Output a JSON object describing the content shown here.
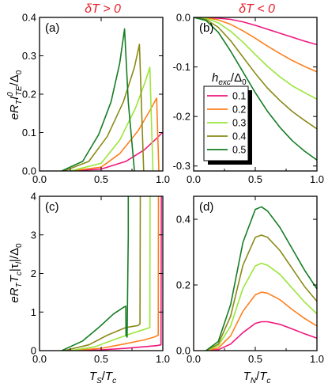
{
  "chart_data": [
    {
      "type": "line",
      "panel_label": "(a)",
      "title": "δT > 0",
      "ylabel": "eR_T I^0_TE/Δ_0",
      "xlabel": "",
      "xlim": [
        0,
        1
      ],
      "ylim": [
        0,
        0.4
      ],
      "x_ticks": [
        "0.0",
        "0.5",
        "1.0"
      ],
      "y_ticks": [
        "0.0",
        "0.1",
        "0.2",
        "0.3",
        "0.4"
      ],
      "series": [
        {
          "name": "0.1",
          "color": "#f0167e",
          "x": [
            0.25,
            0.5,
            0.7,
            0.85,
            0.95,
            0.99,
            1.0
          ],
          "y": [
            0,
            0.005,
            0.025,
            0.055,
            0.085,
            0.098,
            0.1
          ]
        },
        {
          "name": "0.2",
          "color": "#ff7f1e",
          "x": [
            0.25,
            0.5,
            0.65,
            0.8,
            0.9,
            0.95,
            0.968
          ],
          "y": [
            0,
            0.01,
            0.045,
            0.105,
            0.16,
            0.19,
            0.0
          ]
        },
        {
          "name": "0.3",
          "color": "#9ae63a",
          "x": [
            0.25,
            0.5,
            0.65,
            0.78,
            0.86,
            0.895,
            0.92
          ],
          "y": [
            0,
            0.02,
            0.08,
            0.165,
            0.235,
            0.27,
            0.0
          ]
        },
        {
          "name": "0.4",
          "color": "#8a8a18",
          "x": [
            0.2,
            0.4,
            0.55,
            0.68,
            0.77,
            0.81,
            0.845
          ],
          "y": [
            0,
            0.025,
            0.09,
            0.18,
            0.27,
            0.33,
            0.0
          ]
        },
        {
          "name": "0.5",
          "color": "#157d24",
          "x": [
            0.18,
            0.35,
            0.48,
            0.58,
            0.65,
            0.69,
            0.72,
            0.77
          ],
          "y": [
            0,
            0.025,
            0.095,
            0.18,
            0.28,
            0.37,
            0.18,
            0.0
          ]
        }
      ]
    },
    {
      "type": "line",
      "panel_label": "(b)",
      "title": "δT < 0",
      "xlabel": "",
      "ylabel": "",
      "xlim": [
        0,
        1
      ],
      "ylim": [
        -0.31,
        0.0
      ],
      "x_ticks": [
        "0.0",
        "0.5",
        "1.0"
      ],
      "y_ticks": [
        "0.0",
        "-0.1",
        "-0.2",
        "-0.3"
      ],
      "legend": {
        "title": "h_exc/Δ_0",
        "placement": "center-left"
      },
      "series": [
        {
          "name": "0.1",
          "color": "#f0167e",
          "x": [
            0,
            0.1,
            0.2,
            0.3,
            0.4,
            0.5,
            0.6,
            0.7,
            0.8,
            0.9,
            1.0
          ],
          "y": [
            0,
            -0.0003,
            -0.0015,
            -0.004,
            -0.009,
            -0.016,
            -0.024,
            -0.032,
            -0.04,
            -0.048,
            -0.055
          ]
        },
        {
          "name": "0.2",
          "color": "#ff7f1e",
          "x": [
            0,
            0.1,
            0.2,
            0.3,
            0.4,
            0.5,
            0.6,
            0.7,
            0.8,
            0.9,
            1.0
          ],
          "y": [
            0,
            -0.001,
            -0.005,
            -0.014,
            -0.027,
            -0.042,
            -0.058,
            -0.073,
            -0.087,
            -0.099,
            -0.11
          ]
        },
        {
          "name": "0.3",
          "color": "#9ae63a",
          "x": [
            0,
            0.1,
            0.2,
            0.3,
            0.4,
            0.5,
            0.6,
            0.7,
            0.8,
            0.9,
            1.0
          ],
          "y": [
            0,
            -0.002,
            -0.011,
            -0.028,
            -0.05,
            -0.075,
            -0.099,
            -0.12,
            -0.138,
            -0.152,
            -0.165
          ]
        },
        {
          "name": "0.4",
          "color": "#8a8a18",
          "x": [
            0,
            0.1,
            0.2,
            0.3,
            0.4,
            0.5,
            0.6,
            0.7,
            0.8,
            0.9,
            1.0
          ],
          "y": [
            0,
            -0.004,
            -0.02,
            -0.047,
            -0.08,
            -0.113,
            -0.143,
            -0.168,
            -0.19,
            -0.208,
            -0.225
          ]
        },
        {
          "name": "0.5",
          "color": "#157d24",
          "x": [
            0,
            0.1,
            0.2,
            0.3,
            0.4,
            0.5,
            0.6,
            0.7,
            0.8,
            0.9,
            1.0
          ],
          "y": [
            0,
            -0.006,
            -0.03,
            -0.068,
            -0.11,
            -0.152,
            -0.19,
            -0.222,
            -0.249,
            -0.27,
            -0.288
          ]
        }
      ]
    },
    {
      "type": "line",
      "panel_label": "(c)",
      "ylabel": "eR_T T_c|τ_l|/Δ_0",
      "xlabel": "T_S/T_c",
      "xlim": [
        0,
        1
      ],
      "ylim": [
        0,
        4
      ],
      "x_ticks": [
        "0.0",
        "0.5",
        "1.0"
      ],
      "y_ticks": [
        "0",
        "1",
        "2",
        "3",
        "4"
      ],
      "series": [
        {
          "name": "0.1",
          "color": "#f0167e",
          "x": [
            0.25,
            0.5,
            0.7,
            0.85,
            0.95,
            0.985,
            0.988,
            0.99
          ],
          "y": [
            0,
            0.02,
            0.06,
            0.1,
            0.13,
            0.15,
            4.0,
            4.0
          ]
        },
        {
          "name": "0.2",
          "color": "#ff7f1e",
          "x": [
            0.25,
            0.5,
            0.7,
            0.85,
            0.93,
            0.963,
            0.965
          ],
          "y": [
            0,
            0.06,
            0.18,
            0.28,
            0.35,
            0.4,
            4.0
          ]
        },
        {
          "name": "0.3",
          "color": "#9ae63a",
          "x": [
            0.25,
            0.45,
            0.6,
            0.75,
            0.85,
            0.895,
            0.897
          ],
          "y": [
            0,
            0.1,
            0.28,
            0.45,
            0.55,
            0.6,
            4.0
          ]
        },
        {
          "name": "0.4",
          "color": "#8a8a18",
          "x": [
            0.2,
            0.4,
            0.55,
            0.7,
            0.8,
            0.815,
            0.817
          ],
          "y": [
            0,
            0.15,
            0.4,
            0.6,
            0.65,
            0.7,
            4.0
          ]
        },
        {
          "name": "0.5",
          "color": "#157d24",
          "x": [
            0.18,
            0.35,
            0.48,
            0.6,
            0.68,
            0.7,
            0.701,
            0.71,
            0.72,
            0.72
          ],
          "y": [
            0,
            0.25,
            0.6,
            0.95,
            1.12,
            1.15,
            0.4,
            0.35,
            3.0,
            4.0
          ]
        }
      ]
    },
    {
      "type": "line",
      "panel_label": "(d)",
      "xlabel": "T_N/T_c",
      "ylabel": "",
      "xlim": [
        0,
        1
      ],
      "ylim": [
        0,
        0.47
      ],
      "x_ticks": [
        "0.0",
        "0.5",
        "1.0"
      ],
      "y_ticks": [
        "0.0",
        "0.2",
        "0.4"
      ],
      "series": [
        {
          "name": "0.1",
          "color": "#f0167e",
          "x": [
            0.1,
            0.2,
            0.3,
            0.4,
            0.5,
            0.55,
            0.6,
            0.7,
            0.8,
            0.9,
            1.0
          ],
          "y": [
            0,
            0.003,
            0.02,
            0.055,
            0.083,
            0.088,
            0.088,
            0.08,
            0.066,
            0.051,
            0.038
          ]
        },
        {
          "name": "0.2",
          "color": "#ff7f1e",
          "x": [
            0.1,
            0.2,
            0.3,
            0.4,
            0.5,
            0.55,
            0.6,
            0.7,
            0.8,
            0.9,
            1.0
          ],
          "y": [
            0,
            0.008,
            0.045,
            0.12,
            0.17,
            0.178,
            0.175,
            0.155,
            0.125,
            0.098,
            0.075
          ]
        },
        {
          "name": "0.3",
          "color": "#9ae63a",
          "x": [
            0.1,
            0.2,
            0.3,
            0.4,
            0.5,
            0.55,
            0.6,
            0.7,
            0.8,
            0.9,
            1.0
          ],
          "y": [
            0,
            0.015,
            0.075,
            0.19,
            0.258,
            0.266,
            0.26,
            0.232,
            0.19,
            0.148,
            0.112
          ]
        },
        {
          "name": "0.4",
          "color": "#8a8a18",
          "x": [
            0.1,
            0.2,
            0.3,
            0.4,
            0.5,
            0.55,
            0.6,
            0.7,
            0.8,
            0.9,
            1.0
          ],
          "y": [
            0,
            0.02,
            0.105,
            0.26,
            0.345,
            0.352,
            0.345,
            0.305,
            0.25,
            0.195,
            0.15
          ]
        },
        {
          "name": "0.5",
          "color": "#157d24",
          "x": [
            0.1,
            0.2,
            0.3,
            0.4,
            0.5,
            0.55,
            0.6,
            0.7,
            0.8,
            0.9,
            1.0
          ],
          "y": [
            0,
            0.028,
            0.14,
            0.33,
            0.43,
            0.438,
            0.425,
            0.375,
            0.31,
            0.245,
            0.188
          ]
        }
      ]
    }
  ]
}
